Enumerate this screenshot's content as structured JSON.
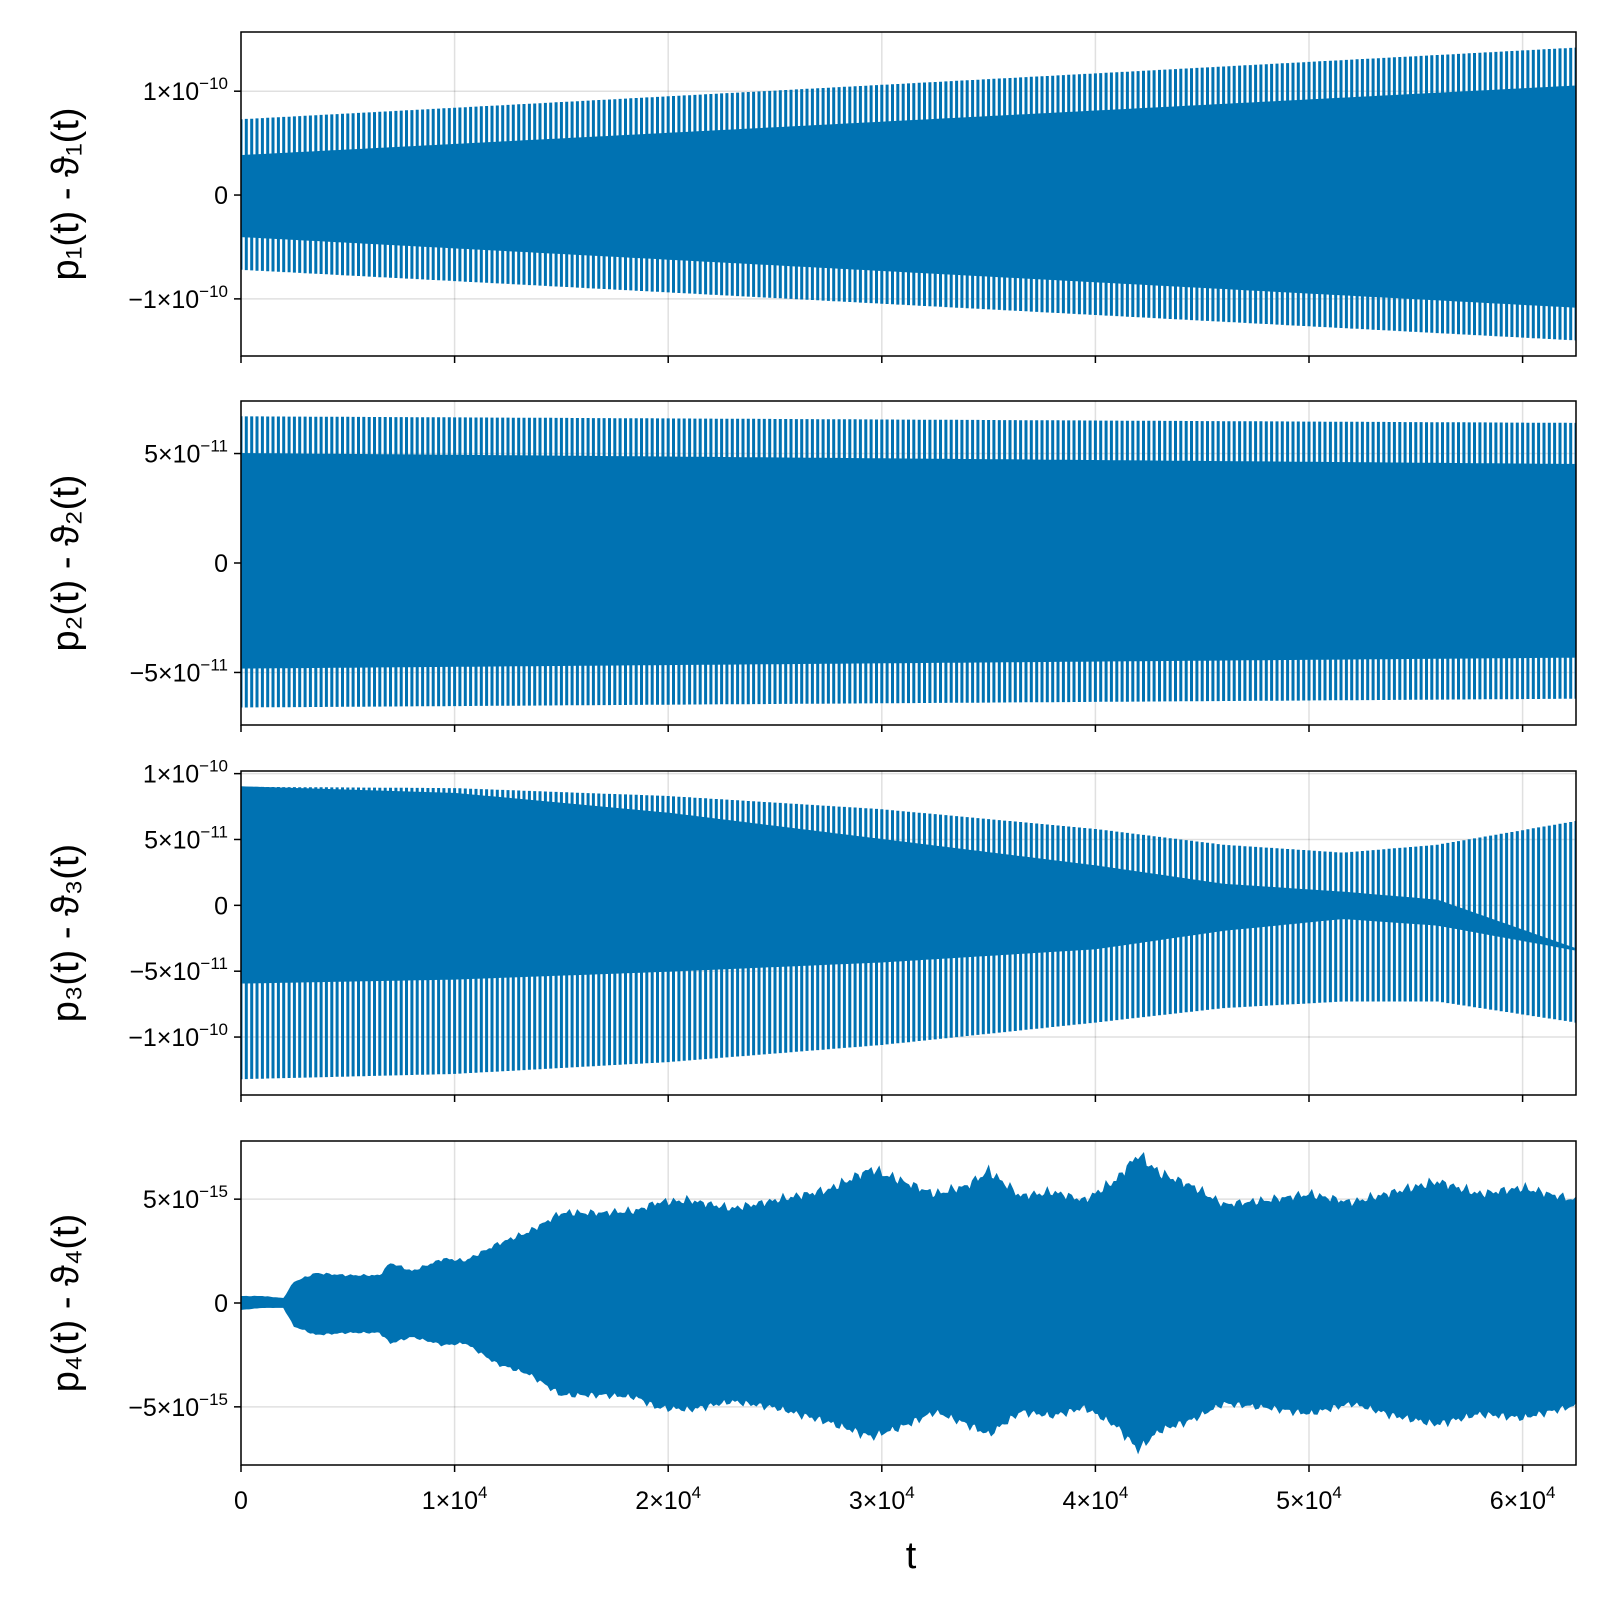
{
  "figure": {
    "xlabel": "t",
    "series_color": "#0072B2",
    "grid": true
  },
  "chart_data": [
    {
      "type": "line",
      "ylabel": "p₁(t) - ϑ₁(t)",
      "xlim": [
        0,
        62500
      ],
      "ylim": [
        -1.55e-10,
        1.57e-10
      ],
      "yticks": [
        {
          "value": 1e-10,
          "mant": "1×10",
          "exp": "−10"
        },
        {
          "value": 0,
          "mant": "0",
          "exp": ""
        },
        {
          "value": -1e-10,
          "mant": "−1×10",
          "exp": "−10"
        }
      ],
      "envelope": {
        "t": [
          0,
          62500
        ],
        "outer_upper": [
          7.3e-11,
          1.42e-10
        ],
        "outer_lower": [
          -7.2e-11,
          -1.4e-10
        ],
        "inner_upper": [
          3.8e-11,
          1.05e-10
        ],
        "inner_lower": [
          -4e-11,
          -1.08e-10
        ]
      }
    },
    {
      "type": "line",
      "ylabel": "p₂(t) - ϑ₂(t)",
      "xlim": [
        0,
        62500
      ],
      "ylim": [
        -7.4e-11,
        7.4e-11
      ],
      "yticks": [
        {
          "value": 5e-11,
          "mant": "5×10",
          "exp": "−11"
        },
        {
          "value": 0,
          "mant": "0",
          "exp": ""
        },
        {
          "value": -5e-11,
          "mant": "−5×10",
          "exp": "−11"
        }
      ],
      "envelope": {
        "t": [
          0,
          62500
        ],
        "outer_upper": [
          6.7e-11,
          6.4e-11
        ],
        "outer_lower": [
          -6.6e-11,
          -6.2e-11
        ],
        "inner_upper": [
          5e-11,
          4.5e-11
        ],
        "inner_lower": [
          -4.8e-11,
          -4.3e-11
        ]
      }
    },
    {
      "type": "line",
      "ylabel": "p₃(t) - ϑ₃(t)",
      "xlim": [
        0,
        62500
      ],
      "ylim": [
        -1.44e-10,
        1.02e-10
      ],
      "yticks": [
        {
          "value": 1e-10,
          "mant": "1×10",
          "exp": "−10"
        },
        {
          "value": 5e-11,
          "mant": "5×10",
          "exp": "−11"
        },
        {
          "value": 0,
          "mant": "0",
          "exp": ""
        },
        {
          "value": -5e-11,
          "mant": "−5×10",
          "exp": "−11"
        },
        {
          "value": -1e-10,
          "mant": "−1×10",
          "exp": "−10"
        }
      ],
      "envelope": {
        "t": [
          0,
          10000,
          20000,
          30000,
          40000,
          46000,
          51600,
          56000,
          62500
        ],
        "outer_upper": [
          9e-11,
          8.9e-11,
          8.3e-11,
          7.3e-11,
          5.8e-11,
          4.6e-11,
          4e-11,
          4.6e-11,
          6.4e-11
        ],
        "outer_lower": [
          -1.32e-10,
          -1.28e-10,
          -1.19e-10,
          -1.06e-10,
          -8.9e-11,
          -7.8e-11,
          -7.3e-11,
          -7.3e-11,
          -8.9e-11
        ],
        "inner_upper": [
          9e-11,
          8.5e-11,
          7e-11,
          5e-11,
          3e-11,
          1.6e-11,
          1e-11,
          4e-12,
          -3.3e-11
        ],
        "inner_lower": [
          -5.9e-11,
          -5.6e-11,
          -5e-11,
          -4.3e-11,
          -3.3e-11,
          -1.9e-11,
          -1e-11,
          -1.5e-11,
          -3.4e-11
        ]
      }
    },
    {
      "type": "area",
      "ylabel": "p₄(t) - ϑ₄(t)",
      "xlim": [
        0,
        62500
      ],
      "ylim": [
        -7.8e-15,
        7.8e-15
      ],
      "yticks": [
        {
          "value": 5e-15,
          "mant": "5×10",
          "exp": "−15"
        },
        {
          "value": 0,
          "mant": "0",
          "exp": ""
        },
        {
          "value": -5e-15,
          "mant": "−5×10",
          "exp": "−15"
        }
      ],
      "envelope": {
        "t": [
          0,
          1000,
          2000,
          2500,
          3500,
          5000,
          6500,
          7000,
          8000,
          9500,
          10500,
          12000,
          13500,
          15000,
          17000,
          18500,
          19500,
          21000,
          23000,
          25000,
          27500,
          29500,
          31000,
          32500,
          34000,
          35000,
          36500,
          38000,
          39500,
          41000,
          42000,
          43000,
          44500,
          46000,
          48000,
          50000,
          52000,
          54000,
          56000,
          58000,
          60000,
          62500
        ],
        "upper": [
          3e-16,
          3e-16,
          2e-16,
          1e-15,
          1.4e-15,
          1.3e-15,
          1.3e-15,
          1.9e-15,
          1.5e-15,
          2.1e-15,
          2e-15,
          2.8e-15,
          3.4e-15,
          4.3e-15,
          4.3e-15,
          4.4e-15,
          4.8e-15,
          4.9e-15,
          4.5e-15,
          4.9e-15,
          5.4e-15,
          6.4e-15,
          5.8e-15,
          5.2e-15,
          5.6e-15,
          6.3e-15,
          5.1e-15,
          5.3e-15,
          4.9e-15,
          5.9e-15,
          7.1e-15,
          6.2e-15,
          5.6e-15,
          4.7e-15,
          4.9e-15,
          5.2e-15,
          4.8e-15,
          5.3e-15,
          5.8e-15,
          5.2e-15,
          5.5e-15,
          4.9e-15
        ],
        "lower": [
          -3e-16,
          -2e-16,
          -2e-16,
          -1.1e-15,
          -1.5e-15,
          -1.4e-15,
          -1.4e-15,
          -1.9e-15,
          -1.6e-15,
          -2e-15,
          -1.9e-15,
          -2.9e-15,
          -3.4e-15,
          -4.4e-15,
          -4.4e-15,
          -4.5e-15,
          -5e-15,
          -5.1e-15,
          -4.7e-15,
          -5e-15,
          -5.7e-15,
          -6.4e-15,
          -5.9e-15,
          -5.2e-15,
          -5.8e-15,
          -6.3e-15,
          -5.2e-15,
          -5.4e-15,
          -5e-15,
          -5.9e-15,
          -7e-15,
          -6.1e-15,
          -5.6e-15,
          -4.8e-15,
          -5e-15,
          -5.3e-15,
          -4.8e-15,
          -5.4e-15,
          -5.8e-15,
          -5.3e-15,
          -5.5e-15,
          -4.9e-15
        ]
      }
    }
  ],
  "xticks": [
    {
      "value": 0,
      "mant": "0",
      "exp": ""
    },
    {
      "value": 10000,
      "mant": "1×10",
      "exp": "4"
    },
    {
      "value": 20000,
      "mant": "2×10",
      "exp": "4"
    },
    {
      "value": 30000,
      "mant": "3×10",
      "exp": "4"
    },
    {
      "value": 40000,
      "mant": "4×10",
      "exp": "4"
    },
    {
      "value": 50000,
      "mant": "5×10",
      "exp": "4"
    },
    {
      "value": 60000,
      "mant": "6×10",
      "exp": "4"
    }
  ]
}
